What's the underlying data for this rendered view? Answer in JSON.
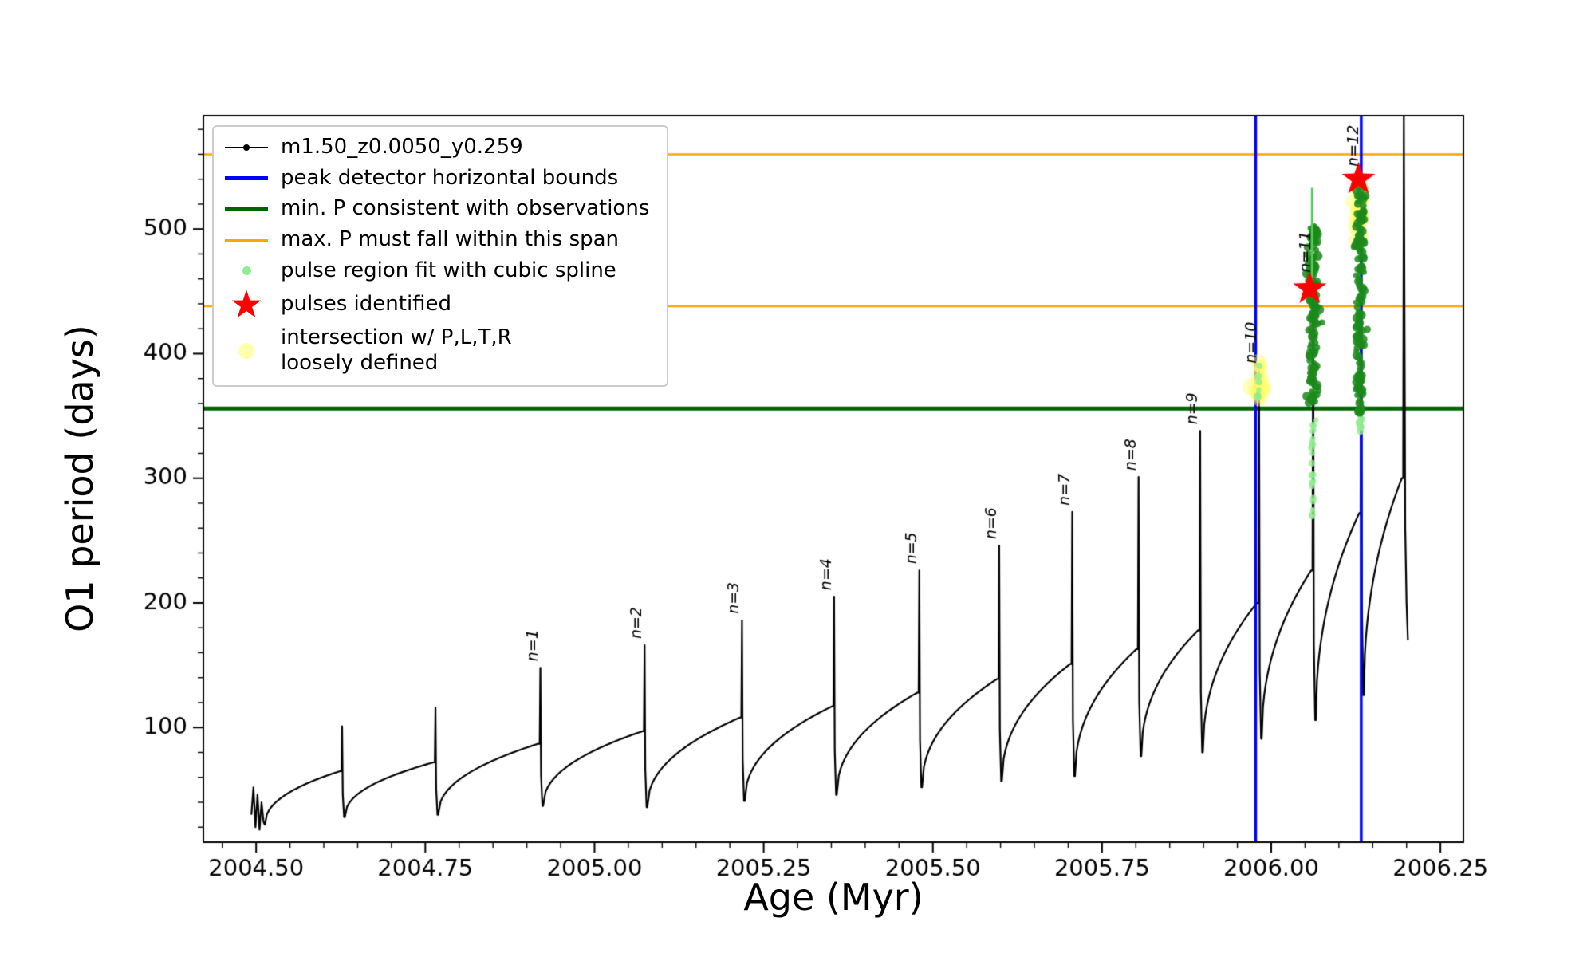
{
  "axes": {
    "x_label": "Age (Myr)",
    "y_label": "O1 period (days)",
    "x_ticks": [
      {
        "v": 2004.5,
        "label": "2004.50"
      },
      {
        "v": 2004.75,
        "label": "2004.75"
      },
      {
        "v": 2005.0,
        "label": "2005.00"
      },
      {
        "v": 2005.25,
        "label": "2005.25"
      },
      {
        "v": 2005.5,
        "label": "2005.50"
      },
      {
        "v": 2005.75,
        "label": "2005.75"
      },
      {
        "v": 2006.0,
        "label": "2006.00"
      },
      {
        "v": 2006.25,
        "label": "2006.25"
      }
    ],
    "y_ticks": [
      {
        "v": 100,
        "label": "100"
      },
      {
        "v": 200,
        "label": "200"
      },
      {
        "v": 300,
        "label": "300"
      },
      {
        "v": 400,
        "label": "400"
      },
      {
        "v": 500,
        "label": "500"
      }
    ]
  },
  "legend": {
    "entries": [
      {
        "label": "m1.50_z0.0050_y0.259",
        "marker": "line-dot",
        "color": "#000000"
      },
      {
        "label": "peak detector horizontal bounds",
        "marker": "thick-line",
        "color": "#0000ff"
      },
      {
        "label": "min. P consistent with observations",
        "marker": "thick-line",
        "color": "#006400"
      },
      {
        "label": "max. P must fall within this span",
        "marker": "thin-line",
        "color": "#ffa500"
      },
      {
        "label": "pulse region fit with cubic spline",
        "marker": "dot-small",
        "color": "#90ee90"
      },
      {
        "label": "pulses identified",
        "marker": "star",
        "color": "#ff0000"
      },
      {
        "label": "intersection w/ P,L,T,R\nloosely defined",
        "marker": "dot-large",
        "color": "#ffff80"
      }
    ]
  },
  "chart_data": {
    "type": "line",
    "title": "",
    "xlabel": "Age (Myr)",
    "ylabel": "O1 period (days)",
    "xlim": [
      2004.422,
      2006.284
    ],
    "ylim": [
      8,
      591
    ],
    "grid": false,
    "legend_position": "upper left",
    "series_label": "m1.50_z0.0050_y0.259",
    "line_color": "#000000",
    "start_cluster": [
      [
        2004.493,
        30
      ],
      [
        2004.496,
        52
      ],
      [
        2004.499,
        20
      ],
      [
        2004.502,
        46
      ],
      [
        2004.505,
        18
      ],
      [
        2004.508,
        40
      ],
      [
        2004.511,
        24
      ],
      [
        2004.513,
        22
      ]
    ],
    "cycles": [
      {
        "x0": 2004.513,
        "y0": 22,
        "x1": 2004.627,
        "y1": 65,
        "top": 101,
        "label": null
      },
      {
        "x0": 2004.631,
        "y0": 28,
        "x1": 2004.765,
        "y1": 72,
        "top": 116,
        "label": null
      },
      {
        "x0": 2004.769,
        "y0": 30,
        "x1": 2004.92,
        "y1": 87,
        "top": 148,
        "label": "n=1"
      },
      {
        "x0": 2004.924,
        "y0": 37,
        "x1": 2005.074,
        "y1": 97,
        "top": 166,
        "label": "n=2"
      },
      {
        "x0": 2005.078,
        "y0": 36,
        "x1": 2005.218,
        "y1": 108,
        "top": 186,
        "label": "n=3"
      },
      {
        "x0": 2005.222,
        "y0": 41,
        "x1": 2005.354,
        "y1": 117,
        "top": 205,
        "label": "n=4"
      },
      {
        "x0": 2005.358,
        "y0": 46,
        "x1": 2005.48,
        "y1": 128,
        "top": 226,
        "label": "n=5"
      },
      {
        "x0": 2005.484,
        "y0": 52,
        "x1": 2005.598,
        "y1": 139,
        "top": 246,
        "label": "n=6"
      },
      {
        "x0": 2005.602,
        "y0": 57,
        "x1": 2005.706,
        "y1": 151,
        "top": 273,
        "label": "n=7"
      },
      {
        "x0": 2005.71,
        "y0": 61,
        "x1": 2005.804,
        "y1": 163,
        "top": 301,
        "label": "n=8"
      },
      {
        "x0": 2005.808,
        "y0": 77,
        "x1": 2005.895,
        "y1": 178,
        "top": 338,
        "label": "n=9"
      },
      {
        "x0": 2005.899,
        "y0": 80,
        "x1": 2005.982,
        "y1": 200,
        "top": 387,
        "label": "n=10"
      },
      {
        "x0": 2005.986,
        "y0": 91,
        "x1": 2006.062,
        "y1": 226,
        "top": 460,
        "label": "n=11"
      },
      {
        "x0": 2006.066,
        "y0": 106,
        "x1": 2006.133,
        "y1": 272,
        "top": 545,
        "label": "n=12"
      },
      {
        "x0": 2006.137,
        "y0": 126,
        "x1": 2006.196,
        "y1": 300,
        "top": 591,
        "label": null
      }
    ],
    "end_segment": [
      [
        2006.198,
        260
      ],
      [
        2006.2,
        200
      ],
      [
        2006.202,
        170
      ]
    ],
    "h_lines": [
      {
        "y": 560,
        "color": "#ffa500",
        "width": 2.5,
        "name": "max-P-span-upper"
      },
      {
        "y": 438,
        "color": "#ffa500",
        "width": 2.5,
        "name": "max-P-span-lower"
      },
      {
        "y": 356,
        "color": "#006400",
        "width": 5,
        "name": "min-P-observed"
      }
    ],
    "v_lines": [
      {
        "x": 2005.977,
        "color": "#0000ff",
        "width": 3.5,
        "name": "peak-bound-left"
      },
      {
        "x": 2006.133,
        "color": "#0000ff",
        "width": 3.5,
        "name": "peak-bound-right"
      }
    ],
    "scatter": [
      {
        "name": "intersection-n10",
        "x": 2005.981,
        "x_sigma": 0.004,
        "y_min": 362,
        "y_max": 398,
        "count": 20,
        "r_min": 7,
        "r_max": 11,
        "color": "#ffff66",
        "alpha": 0.45
      },
      {
        "name": "intersection-n12",
        "x": 2006.13,
        "x_sigma": 0.0035,
        "y_min": 487,
        "y_max": 538,
        "count": 24,
        "r_min": 7,
        "r_max": 11,
        "color": "#ffff66",
        "alpha": 0.45
      },
      {
        "name": "spline-n10",
        "x": 2005.981,
        "x_sigma": 0.0012,
        "y_min": 364,
        "y_max": 394,
        "count": 8,
        "r_min": 2.5,
        "r_max": 4.5,
        "color": "#90ee90",
        "alpha": 0.8
      },
      {
        "name": "spline-tail-n11",
        "x": 2006.061,
        "x_sigma": 0.0012,
        "y_min": 268,
        "y_max": 372,
        "count": 32,
        "r_min": 2.5,
        "r_max": 4.5,
        "color": "#90ee90",
        "alpha": 0.8
      },
      {
        "name": "spline-core-n11",
        "x": 2006.061,
        "x_sigma": 0.004,
        "y_min": 358,
        "y_max": 503,
        "count": 130,
        "r_min": 3,
        "r_max": 6.5,
        "color": "#1b8a1b",
        "alpha": 0.85
      },
      {
        "name": "spline-tail-n12",
        "x": 2006.131,
        "x_sigma": 0.0012,
        "y_min": 336,
        "y_max": 358,
        "count": 12,
        "r_min": 2.5,
        "r_max": 4.5,
        "color": "#90ee90",
        "alpha": 0.8
      },
      {
        "name": "spline-core-n12",
        "x": 2006.131,
        "x_sigma": 0.004,
        "y_min": 352,
        "y_max": 532,
        "count": 130,
        "r_min": 3,
        "r_max": 6.5,
        "color": "#1b8a1b",
        "alpha": 0.85
      }
    ],
    "spline_needles": [
      {
        "x": 2006.0605,
        "y0": 455,
        "y1": 533,
        "color": "#57c957",
        "width": 3
      }
    ],
    "stars": [
      {
        "x": 2006.057,
        "y": 452
      },
      {
        "x": 2006.129,
        "y": 540
      }
    ],
    "star_color": "#ff0000"
  }
}
